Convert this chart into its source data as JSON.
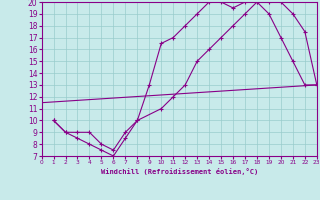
{
  "xlabel": "Windchill (Refroidissement éolien,°C)",
  "xlim": [
    0,
    23
  ],
  "ylim": [
    7,
    20
  ],
  "xticks": [
    0,
    1,
    2,
    3,
    4,
    5,
    6,
    7,
    8,
    9,
    10,
    11,
    12,
    13,
    14,
    15,
    16,
    17,
    18,
    19,
    20,
    21,
    22,
    23
  ],
  "yticks": [
    7,
    8,
    9,
    10,
    11,
    12,
    13,
    14,
    15,
    16,
    17,
    18,
    19,
    20
  ],
  "bg_color": "#c8eaea",
  "line_color": "#880088",
  "grid_color": "#99cccc",
  "line1_x": [
    1,
    2,
    3,
    4,
    5,
    6,
    7,
    8,
    9,
    10,
    11,
    12,
    13,
    14,
    15,
    16,
    17,
    18,
    19,
    20,
    21,
    22,
    23
  ],
  "line1_y": [
    10,
    9,
    8.5,
    8,
    7.5,
    7,
    8.5,
    10,
    13,
    16.5,
    17,
    18,
    19,
    20,
    20,
    19.5,
    20,
    20,
    19,
    17,
    15,
    13,
    13
  ],
  "line2_x": [
    1,
    2,
    3,
    4,
    5,
    6,
    7,
    8,
    10,
    11,
    12,
    13,
    14,
    15,
    16,
    17,
    18,
    19,
    20,
    21,
    22,
    23
  ],
  "line2_y": [
    10,
    9,
    9,
    9,
    8,
    7.5,
    9,
    10,
    11,
    12,
    13,
    15,
    16,
    17,
    18,
    19,
    20,
    20,
    20,
    19,
    17.5,
    13
  ],
  "line3_x": [
    0,
    23
  ],
  "line3_y": [
    11.5,
    13
  ],
  "marker": "+"
}
